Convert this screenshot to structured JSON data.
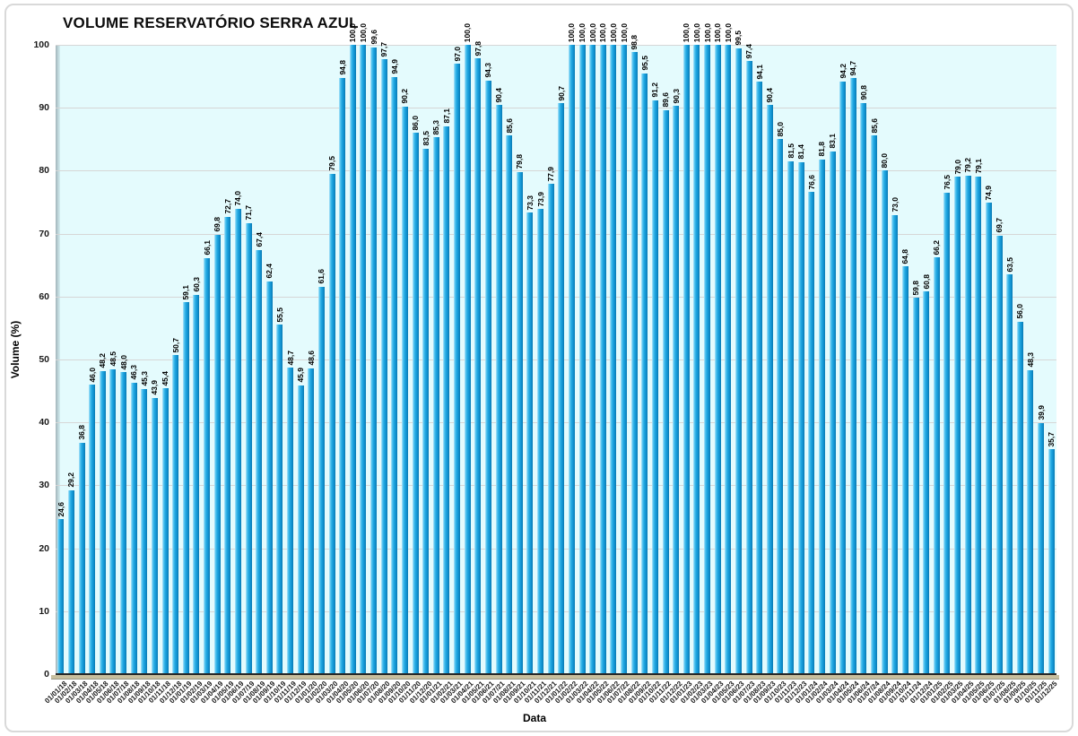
{
  "chart_data": {
    "type": "bar",
    "title": "VOLUME RESERVATÓRIO SERRA AZUL",
    "xlabel": "Data",
    "ylabel": "Volume (%)",
    "ylim": [
      0,
      100
    ],
    "y_ticks": [
      0,
      10,
      20,
      30,
      40,
      50,
      60,
      70,
      80,
      90,
      100
    ],
    "grid": true,
    "legend": false,
    "decimal_separator": ",",
    "plot_bg_color": "#e4fbfd",
    "bar_color": "#1fa6e0",
    "bar_highlight_color": "#b5e6fa",
    "bar_shadow_color": "#0a79b2",
    "categories": [
      "01/01/18",
      "01/02/18",
      "01/03/18",
      "01/04/18",
      "01/05/18",
      "01/06/18",
      "01/07/18",
      "01/08/18",
      "01/09/18",
      "01/10/18",
      "01/11/18",
      "01/12/18",
      "01/01/19",
      "01/02/19",
      "01/03/19",
      "01/04/19",
      "01/05/19",
      "01/06/19",
      "01/07/19",
      "01/08/19",
      "01/09/19",
      "01/10/19",
      "01/11/19",
      "01/12/19",
      "01/01/20",
      "01/02/20",
      "01/03/20",
      "01/04/20",
      "01/05/20",
      "01/06/20",
      "01/07/20",
      "01/08/20",
      "01/09/20",
      "01/10/20",
      "01/11/20",
      "01/12/20",
      "01/01/21",
      "01/02/21",
      "01/03/21",
      "01/04/21",
      "01/05/21",
      "01/06/21",
      "01/07/21",
      "01/08/21",
      "01/09/21",
      "01/10/21",
      "01/11/21",
      "01/12/21",
      "01/01/22",
      "01/02/22",
      "01/03/22",
      "01/04/22",
      "01/05/22",
      "01/06/22",
      "01/07/22",
      "01/08/22",
      "01/09/22",
      "01/10/22",
      "01/11/22",
      "01/12/22",
      "01/01/23",
      "01/02/23",
      "01/03/23",
      "01/04/23",
      "01/05/23",
      "01/06/23",
      "01/07/23",
      "01/08/23",
      "01/09/23",
      "01/10/23",
      "01/11/23",
      "01/12/23",
      "01/01/24",
      "01/02/24",
      "01/03/24",
      "01/04/24",
      "01/05/24",
      "01/06/24",
      "01/07/24",
      "01/08/24",
      "01/09/24",
      "01/10/24",
      "01/11/24",
      "01/12/24",
      "01/01/25",
      "01/02/25",
      "01/03/25",
      "01/04/25",
      "01/05/25",
      "01/06/25",
      "01/07/25",
      "01/08/25",
      "01/09/25",
      "01/10/25",
      "01/11/25",
      "01/12/25"
    ],
    "values": [
      24.6,
      29.2,
      36.8,
      46.0,
      48.2,
      48.5,
      48.0,
      46.3,
      45.3,
      43.9,
      45.4,
      50.7,
      59.1,
      60.3,
      66.1,
      69.8,
      72.7,
      74.0,
      71.7,
      67.4,
      62.4,
      55.5,
      48.7,
      45.9,
      48.6,
      61.6,
      79.5,
      94.8,
      100.0,
      100.0,
      99.6,
      97.7,
      94.9,
      90.2,
      86.0,
      83.5,
      85.3,
      87.1,
      97.0,
      100.0,
      97.8,
      94.3,
      90.4,
      85.6,
      79.8,
      73.3,
      73.9,
      77.9,
      90.7,
      100.0,
      100.0,
      100.0,
      100.0,
      100.0,
      100.0,
      98.8,
      95.5,
      91.2,
      89.6,
      90.3,
      100.0,
      100.0,
      100.0,
      100.0,
      100.0,
      99.5,
      97.4,
      94.1,
      90.4,
      85.0,
      81.5,
      81.4,
      76.6,
      81.8,
      83.1,
      94.2,
      94.7,
      90.8,
      85.6,
      80.0,
      73.0,
      64.8,
      59.8,
      60.8,
      66.2,
      76.5,
      79.0,
      79.2,
      79.1,
      74.9,
      69.7,
      63.5,
      56.0,
      48.3,
      39.9,
      35.7
    ]
  }
}
